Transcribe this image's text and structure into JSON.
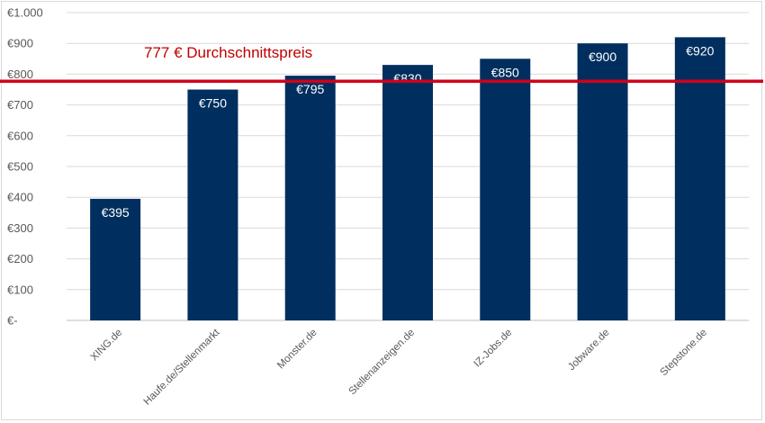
{
  "chart_data": {
    "type": "bar",
    "categories": [
      "XING.de",
      "Haufe.de/Stellenmarkt",
      "Monster.de",
      "Stellenanzeigen.de",
      "IZ-Jobs.de",
      "Jobware.de",
      "Stepstone.de"
    ],
    "values": [
      395,
      750,
      795,
      830,
      850,
      900,
      920
    ],
    "data_labels": [
      "€395",
      "€750",
      "€795",
      "€830",
      "€850",
      "€900",
      "€920"
    ],
    "ylim": [
      0,
      1000
    ],
    "yticks": [
      0,
      100,
      200,
      300,
      400,
      500,
      600,
      700,
      800,
      900,
      1000
    ],
    "ytick_labels": [
      "€-",
      "€100",
      "€200",
      "€300",
      "€400",
      "€500",
      "€600",
      "€700",
      "€800",
      "€900",
      "€1.000"
    ],
    "grid": true,
    "legend": "none",
    "bar_color": "#002f5f",
    "average_line": {
      "value": 777,
      "label": "777 € Durchschnittspreis",
      "color": "#d0021b"
    },
    "title": "",
    "xlabel": "",
    "ylabel": ""
  }
}
